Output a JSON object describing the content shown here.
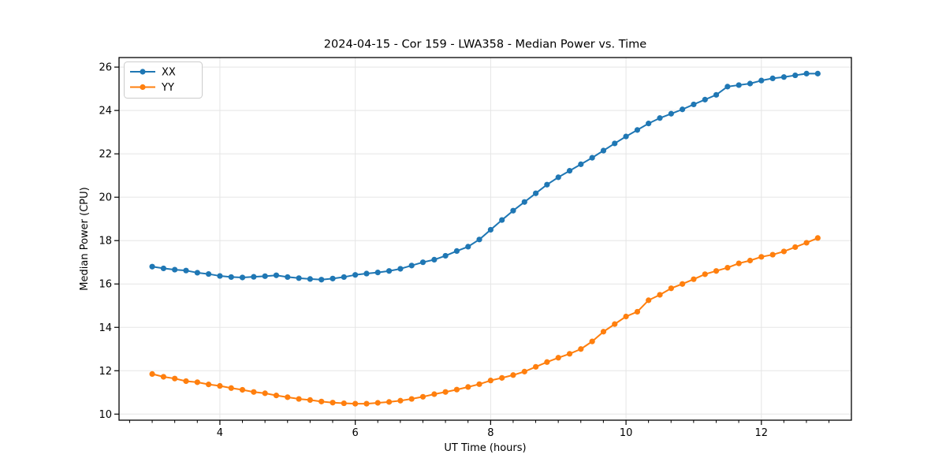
{
  "chart_data": {
    "type": "line",
    "title": "2024-04-15 - Cor 159 - LWA358 - Median Power vs. Time",
    "xlabel": "UT Time (hours)",
    "ylabel": "Median Power (CPU)",
    "xlim": [
      2.51,
      13.33
    ],
    "ylim": [
      9.72,
      26.44
    ],
    "xticks": [
      4,
      6,
      8,
      10,
      12
    ],
    "yticks": [
      10,
      12,
      14,
      16,
      18,
      20,
      22,
      24,
      26
    ],
    "x_minor_tick_step": 0.3333,
    "grid": true,
    "legend_position": "upper left",
    "marker": "o",
    "colors": {
      "grid": "#e5e5e5",
      "spine": "#000000",
      "legend_border": "#cccccc"
    },
    "x": [
      3.0,
      3.167,
      3.333,
      3.5,
      3.667,
      3.833,
      4.0,
      4.167,
      4.333,
      4.5,
      4.667,
      4.833,
      5.0,
      5.167,
      5.333,
      5.5,
      5.667,
      5.833,
      6.0,
      6.167,
      6.333,
      6.5,
      6.667,
      6.833,
      7.0,
      7.167,
      7.333,
      7.5,
      7.667,
      7.833,
      8.0,
      8.167,
      8.333,
      8.5,
      8.667,
      8.833,
      9.0,
      9.167,
      9.333,
      9.5,
      9.667,
      9.833,
      10.0,
      10.167,
      10.333,
      10.5,
      10.667,
      10.833,
      11.0,
      11.167,
      11.333,
      11.5,
      11.667,
      11.833,
      12.0,
      12.167,
      12.333,
      12.5,
      12.667,
      12.833
    ],
    "series": [
      {
        "name": "XX",
        "color": "#1f77b4",
        "values": [
          16.8,
          16.72,
          16.66,
          16.62,
          16.52,
          16.46,
          16.37,
          16.32,
          16.3,
          16.33,
          16.36,
          16.4,
          16.32,
          16.27,
          16.23,
          16.2,
          16.25,
          16.32,
          16.42,
          16.48,
          16.53,
          16.6,
          16.7,
          16.85,
          17.0,
          17.12,
          17.3,
          17.52,
          17.72,
          18.05,
          18.5,
          18.95,
          19.38,
          19.78,
          20.18,
          20.58,
          20.92,
          21.22,
          21.52,
          21.82,
          22.15,
          22.48,
          22.8,
          23.1,
          23.4,
          23.65,
          23.85,
          24.05,
          24.28,
          24.5,
          24.72,
          25.1,
          25.17,
          25.24,
          25.38,
          25.48,
          25.54,
          25.62,
          25.7,
          25.7
        ]
      },
      {
        "name": "YY",
        "color": "#ff7f0e",
        "values": [
          11.85,
          11.72,
          11.64,
          11.52,
          11.47,
          11.37,
          11.3,
          11.2,
          11.12,
          11.02,
          10.96,
          10.86,
          10.78,
          10.7,
          10.65,
          10.58,
          10.53,
          10.5,
          10.48,
          10.48,
          10.52,
          10.56,
          10.62,
          10.7,
          10.8,
          10.92,
          11.02,
          11.13,
          11.25,
          11.38,
          11.55,
          11.67,
          11.8,
          11.96,
          12.18,
          12.4,
          12.6,
          12.78,
          13.0,
          13.35,
          13.8,
          14.15,
          14.5,
          14.72,
          15.25,
          15.5,
          15.8,
          16.0,
          16.22,
          16.45,
          16.6,
          16.75,
          16.95,
          17.08,
          17.25,
          17.35,
          17.5,
          17.7,
          17.9,
          18.12
        ]
      }
    ]
  }
}
